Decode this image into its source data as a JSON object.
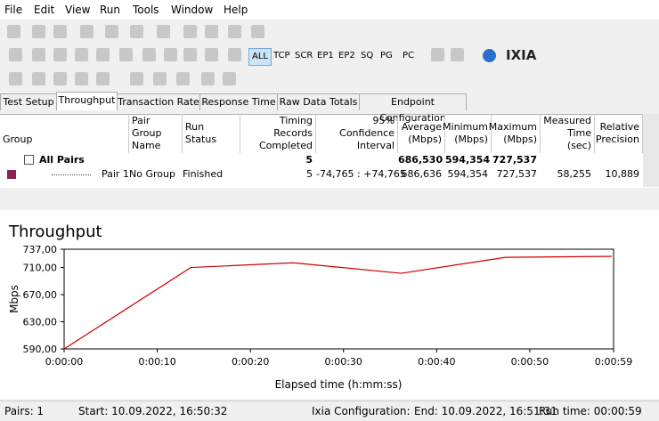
{
  "menu": [
    "File",
    "Edit",
    "View",
    "Run",
    "Tools",
    "Window",
    "Help"
  ],
  "toolbar": {
    "buttons": [
      "ALL",
      "TCP",
      "SCR",
      "EP1",
      "EP2",
      "SQ",
      "PG",
      "PC"
    ],
    "brand": "IXIA"
  },
  "tabs": [
    "Test Setup",
    "Throughput",
    "Transaction Rate",
    "Response Time",
    "Raw Data Totals",
    "Endpoint Configuration"
  ],
  "table": {
    "columns": [
      "Group",
      "Pair Group Name",
      "Run Status",
      "Timing Records Completed",
      "95% Confidence Interval",
      "Average (Mbps)",
      "Minimum (Mbps)",
      "Maximum (Mbps)",
      "Measured Time (sec)",
      "Relative Precision"
    ],
    "rows": [
      {
        "group": "All Pairs",
        "records": "5",
        "average": "686,530",
        "minimum": "594,354",
        "maximum": "727,537"
      },
      {
        "group": "Pair 1",
        "pair_group": "No Group",
        "status": "Finished",
        "records": "5",
        "interval": "-74,765 : +74,765",
        "average": "686,636",
        "minimum": "594,354",
        "maximum": "727,537",
        "time": "58,255",
        "precision": "10,889"
      }
    ]
  },
  "chart_data": {
    "type": "line",
    "title": "Throughput",
    "y_label": "Mbps",
    "x_label": "Elapsed time (h:mm:ss)",
    "x": [
      0,
      13.6,
      24.6,
      36.2,
      47.4,
      58.8
    ],
    "series": [
      {
        "name": "Pair 1",
        "color": "#cc0000",
        "values": [
          590,
          710,
          717,
          701.5,
          725,
          726.5
        ]
      }
    ],
    "xlim": [
      0,
      59
    ],
    "ylim": [
      590,
      737
    ],
    "xticks": [
      {
        "value": 0,
        "label": "0:00:00"
      },
      {
        "value": 10,
        "label": "0:00:10"
      },
      {
        "value": 20,
        "label": "0:00:20"
      },
      {
        "value": 30,
        "label": "0:00:30"
      },
      {
        "value": 40,
        "label": "0:00:40"
      },
      {
        "value": 50,
        "label": "0:00:50"
      },
      {
        "value": 59,
        "label": "0:00:59"
      }
    ],
    "yticks": [
      {
        "value": 590,
        "label": "590,00"
      },
      {
        "value": 630,
        "label": "630,00"
      },
      {
        "value": 670,
        "label": "670,00"
      },
      {
        "value": 710,
        "label": "710,00"
      },
      {
        "value": 737,
        "label": "737,00"
      }
    ]
  },
  "status": [
    "Pairs: 1",
    "Start: 10.09.2022, 16:50:32",
    "Ixia Configuration:",
    "End: 10.09.2022, 16:51:31",
    "Run time: 00:00:59"
  ]
}
